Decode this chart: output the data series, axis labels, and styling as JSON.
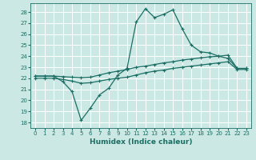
{
  "title": "",
  "xlabel": "Humidex (Indice chaleur)",
  "bg_color": "#cce8e4",
  "grid_color": "#b0d8d2",
  "line_color": "#1a6e64",
  "xlim": [
    -0.5,
    23.5
  ],
  "ylim": [
    17.5,
    28.8
  ],
  "xticks": [
    0,
    1,
    2,
    3,
    4,
    5,
    6,
    7,
    8,
    9,
    10,
    11,
    12,
    13,
    14,
    15,
    16,
    17,
    18,
    19,
    20,
    21,
    22,
    23
  ],
  "yticks": [
    18,
    19,
    20,
    21,
    22,
    23,
    24,
    25,
    26,
    27,
    28
  ],
  "line1_x": [
    0,
    1,
    2,
    3,
    4,
    5,
    6,
    7,
    8,
    9,
    10,
    11,
    12,
    13,
    14,
    15,
    16,
    17,
    18,
    19,
    20,
    21,
    22,
    23
  ],
  "line1_y": [
    22.2,
    22.2,
    22.2,
    21.7,
    20.8,
    18.2,
    19.3,
    20.5,
    21.1,
    22.3,
    22.9,
    27.1,
    28.3,
    27.5,
    27.8,
    28.2,
    26.5,
    25.0,
    24.4,
    24.3,
    24.0,
    23.8,
    22.9,
    22.9
  ],
  "line2_x": [
    0,
    1,
    2,
    3,
    4,
    5,
    6,
    7,
    8,
    9,
    10,
    11,
    12,
    13,
    14,
    15,
    16,
    17,
    18,
    19,
    20,
    21,
    22,
    23
  ],
  "line2_y": [
    22.2,
    22.2,
    22.2,
    22.15,
    22.1,
    22.05,
    22.1,
    22.3,
    22.5,
    22.65,
    22.8,
    23.0,
    23.1,
    23.25,
    23.4,
    23.5,
    23.65,
    23.75,
    23.85,
    23.95,
    24.0,
    24.1,
    22.9,
    22.9
  ],
  "line3_x": [
    0,
    1,
    2,
    3,
    4,
    5,
    6,
    7,
    8,
    9,
    10,
    11,
    12,
    13,
    14,
    15,
    16,
    17,
    18,
    19,
    20,
    21,
    22,
    23
  ],
  "line3_y": [
    22.0,
    22.0,
    22.0,
    21.9,
    21.75,
    21.55,
    21.6,
    21.75,
    21.9,
    22.0,
    22.1,
    22.3,
    22.5,
    22.65,
    22.75,
    22.9,
    23.0,
    23.1,
    23.2,
    23.3,
    23.4,
    23.5,
    22.8,
    22.8
  ]
}
